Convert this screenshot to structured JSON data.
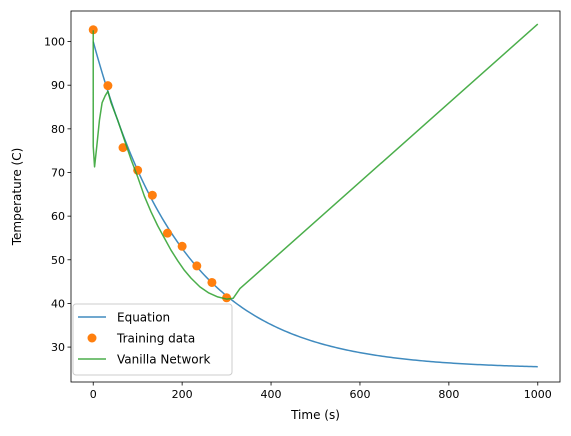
{
  "chart_data": {
    "type": "line",
    "title": "",
    "xlabel": "Time (s)",
    "ylabel": "Temperature (C)",
    "xlim": [
      -50,
      1050
    ],
    "ylim": [
      22,
      107
    ],
    "grid": false,
    "legend_position": "lower-left",
    "x_ticks": [
      0,
      200,
      400,
      600,
      800,
      1000
    ],
    "y_ticks": [
      30,
      40,
      50,
      60,
      70,
      80,
      90,
      100
    ],
    "series": [
      {
        "name": "Equation",
        "kind": "line",
        "color": "#1f77b4",
        "equation": {
          "T_env": 25,
          "T0": 100,
          "r": 0.005
        },
        "x": [
          0,
          50,
          100,
          150,
          200,
          250,
          300,
          350,
          400,
          450,
          500,
          550,
          600,
          650,
          700,
          750,
          800,
          850,
          900,
          950,
          1000
        ],
        "y": [
          100,
          83.4,
          70.5,
          60.4,
          52.6,
          46.5,
          41.7,
          38.0,
          35.2,
          32.9,
          31.2,
          29.8,
          28.7,
          27.9,
          27.3,
          26.8,
          26.4,
          26.1,
          25.8,
          25.6,
          25.5
        ]
      },
      {
        "name": "Training data",
        "kind": "scatter",
        "color": "#ff7f0e",
        "x": [
          0,
          33,
          67,
          100,
          133,
          167,
          200,
          233,
          267,
          300
        ],
        "y": [
          102.7,
          89.9,
          75.7,
          70.5,
          64.8,
          56.1,
          53.1,
          48.6,
          44.8,
          41.3
        ]
      },
      {
        "name": "Vanilla Network",
        "kind": "line",
        "color": "#2ca02c",
        "x": [
          0,
          0,
          3,
          8,
          14,
          20,
          27,
          33,
          40,
          55,
          70,
          85,
          100,
          115,
          130,
          145,
          160,
          175,
          190,
          205,
          220,
          240,
          260,
          280,
          300,
          315,
          330,
          1000
        ],
        "y": [
          102.6,
          76.0,
          71.3,
          76.0,
          82.0,
          86.0,
          87.6,
          88.6,
          86.0,
          82.0,
          77.5,
          73.0,
          69.0,
          64.6,
          61.0,
          57.8,
          55.0,
          52.2,
          49.8,
          47.6,
          45.8,
          43.8,
          42.4,
          41.5,
          41.0,
          41.2,
          43.4,
          104.0
        ]
      }
    ]
  }
}
